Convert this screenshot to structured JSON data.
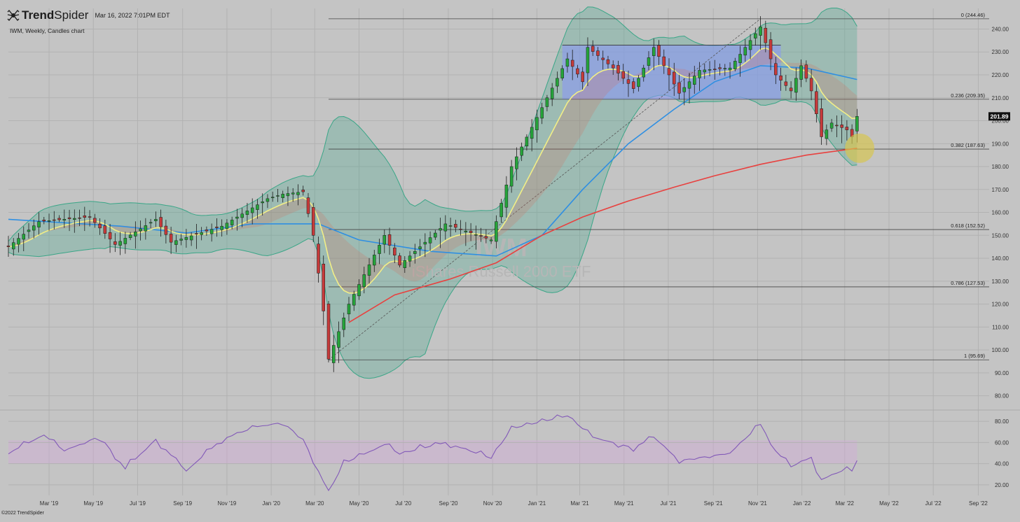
{
  "header": {
    "brand_bold": "Trend",
    "brand_light": "Spider",
    "timestamp": "Mar 16, 2022 7:01PM EDT",
    "subtitle": "IWM, Weekly, Candles chart",
    "copyright": "©2022 TrendSpider"
  },
  "icons": {
    "logo": "trendspider-spider-icon"
  },
  "colors": {
    "background": "#c4c4c4",
    "grid": "#b2b2b2",
    "up_candle": "#25a43a",
    "down_candle": "#c63a3a",
    "ema_fast": "#f1ee87",
    "sma_mid": "#2f8fe2",
    "sma_long": "#e8413f",
    "bollinger": "#3aa687",
    "rsi_line": "#8259b8",
    "consolidation_box": "#8a99f2",
    "highlight": "#d8c64a"
  },
  "watermark": {
    "ticker": "IWM",
    "name": "iShares Russell 2000 ETF"
  },
  "chart_data": {
    "type": "candlestick",
    "interval": "weekly",
    "x_tick_labels": [
      "Mar '19",
      "May '19",
      "Jul '19",
      "Sep '19",
      "Nov '19",
      "Jan '20",
      "Mar '20",
      "May '20",
      "Jul '20",
      "Sep '20",
      "Nov '20",
      "Jan '21",
      "Mar '21",
      "May '21",
      "Jul '21",
      "Sep '21",
      "Nov '21",
      "Jan '22",
      "Mar '22",
      "May '22",
      "Jul '22",
      "Sep '22"
    ],
    "x_tick_dates": [
      "2019-03-01",
      "2019-05-01",
      "2019-07-01",
      "2019-09-01",
      "2019-11-01",
      "2020-01-01",
      "2020-03-01",
      "2020-05-01",
      "2020-07-01",
      "2020-09-01",
      "2020-11-01",
      "2021-01-01",
      "2021-03-01",
      "2021-05-01",
      "2021-07-01",
      "2021-09-01",
      "2021-11-01",
      "2022-01-01",
      "2022-03-01",
      "2022-05-01",
      "2022-07-01",
      "2022-09-01"
    ],
    "x_range": [
      "2019-01-04",
      "2022-09-16"
    ],
    "price_axis": {
      "ylim": [
        75,
        249
      ],
      "ticks": [
        80,
        90,
        100,
        110,
        120,
        130,
        140,
        150,
        160,
        170,
        180,
        190,
        200,
        210,
        220,
        230,
        240
      ],
      "tick_labels": [
        "80.00",
        "90.00",
        "100.00",
        "110.00",
        "120.00",
        "130.00",
        "140.00",
        "150.00",
        "160.00",
        "170.00",
        "180.00",
        "190.00",
        "200.00",
        "210.00",
        "220.00",
        "230.00",
        "240.00"
      ]
    },
    "last_price": 201.89,
    "last_price_label": "201.89",
    "key_points": [
      {
        "date": "2019-01-04",
        "close": 145
      },
      {
        "date": "2019-02-15",
        "close": 156
      },
      {
        "date": "2019-04-26",
        "close": 158
      },
      {
        "date": "2019-05-31",
        "close": 146
      },
      {
        "date": "2019-07-26",
        "close": 157
      },
      {
        "date": "2019-08-16",
        "close": 147
      },
      {
        "date": "2019-10-25",
        "close": 154
      },
      {
        "date": "2019-12-27",
        "close": 166
      },
      {
        "date": "2020-01-17",
        "close": 168
      },
      {
        "date": "2020-02-14",
        "close": 169
      },
      {
        "date": "2020-02-28",
        "close": 150
      },
      {
        "date": "2020-03-13",
        "close": 117
      },
      {
        "date": "2020-03-20",
        "close": 96
      },
      {
        "date": "2020-04-17",
        "close": 120
      },
      {
        "date": "2020-06-05",
        "close": 150
      },
      {
        "date": "2020-06-26",
        "close": 137
      },
      {
        "date": "2020-08-28",
        "close": 155
      },
      {
        "date": "2020-10-30",
        "close": 148
      },
      {
        "date": "2020-11-27",
        "close": 180
      },
      {
        "date": "2021-01-15",
        "close": 210
      },
      {
        "date": "2021-02-12",
        "close": 227
      },
      {
        "date": "2021-03-05",
        "close": 217
      },
      {
        "date": "2021-03-12",
        "close": 232
      },
      {
        "date": "2021-04-16",
        "close": 223
      },
      {
        "date": "2021-05-14",
        "close": 214
      },
      {
        "date": "2021-06-11",
        "close": 232
      },
      {
        "date": "2021-07-16",
        "close": 212
      },
      {
        "date": "2021-08-13",
        "close": 222
      },
      {
        "date": "2021-09-24",
        "close": 223
      },
      {
        "date": "2021-11-05",
        "close": 241
      },
      {
        "date": "2021-11-26",
        "close": 220
      },
      {
        "date": "2021-12-17",
        "close": 213
      },
      {
        "date": "2021-12-31",
        "close": 224
      },
      {
        "date": "2022-01-14",
        "close": 213
      },
      {
        "date": "2022-01-28",
        "close": 193
      },
      {
        "date": "2022-02-11",
        "close": 199
      },
      {
        "date": "2022-03-04",
        "close": 196
      },
      {
        "date": "2022-03-11",
        "close": 193
      },
      {
        "date": "2022-03-18",
        "close": 201.89
      }
    ],
    "fibonacci": [
      {
        "label": "0 (244.46)",
        "price": 244.46
      },
      {
        "label": "0.236 (209.35)",
        "price": 209.35
      },
      {
        "label": "0.382 (187.63)",
        "price": 187.63
      },
      {
        "label": "0.618 (152.52)",
        "price": 152.52
      },
      {
        "label": "0.786 (127.53)",
        "price": 127.53
      },
      {
        "label": "1 (95.69)",
        "price": 95.69
      }
    ],
    "fib_start_date": "2020-03-20",
    "fib_end_date": "2022-09-16",
    "trend_line": {
      "from": {
        "date": "2020-03-20",
        "price": 95.69
      },
      "to": {
        "date": "2021-11-05",
        "price": 244.46
      }
    },
    "consolidation_box": {
      "from_date": "2021-02-05",
      "to_date": "2021-12-03",
      "low": 209.35,
      "high": 233
    },
    "highlight_circle": {
      "date": "2022-03-11",
      "price": 188
    },
    "sma_long_points": [
      {
        "date": "2020-04-17",
        "value": 112
      },
      {
        "date": "2020-06-19",
        "value": 124
      },
      {
        "date": "2020-09-04",
        "value": 131
      },
      {
        "date": "2020-11-06",
        "value": 138
      },
      {
        "date": "2021-01-08",
        "value": 150
      },
      {
        "date": "2021-03-05",
        "value": 158
      },
      {
        "date": "2021-05-07",
        "value": 165
      },
      {
        "date": "2021-07-09",
        "value": 171
      },
      {
        "date": "2021-09-03",
        "value": 176
      },
      {
        "date": "2021-11-05",
        "value": 181
      },
      {
        "date": "2022-01-07",
        "value": 185
      },
      {
        "date": "2022-03-18",
        "value": 188
      }
    ],
    "sma_mid_points": [
      {
        "date": "2019-01-04",
        "value": 157
      },
      {
        "date": "2019-06-07",
        "value": 154
      },
      {
        "date": "2019-09-06",
        "value": 151
      },
      {
        "date": "2019-12-06",
        "value": 155
      },
      {
        "date": "2020-03-06",
        "value": 155
      },
      {
        "date": "2020-05-01",
        "value": 148
      },
      {
        "date": "2020-08-07",
        "value": 143
      },
      {
        "date": "2020-11-06",
        "value": 141
      },
      {
        "date": "2021-01-08",
        "value": 150
      },
      {
        "date": "2021-03-05",
        "value": 170
      },
      {
        "date": "2021-05-07",
        "value": 190
      },
      {
        "date": "2021-07-09",
        "value": 205
      },
      {
        "date": "2021-09-03",
        "value": 217
      },
      {
        "date": "2021-11-05",
        "value": 224
      },
      {
        "date": "2022-01-07",
        "value": 223
      },
      {
        "date": "2022-03-18",
        "value": 218
      }
    ],
    "rsi": {
      "ylim": [
        10,
        88
      ],
      "ticks": [
        20,
        40,
        60,
        80
      ],
      "tick_labels": [
        "20.00",
        "40.00",
        "60.00",
        "80.00"
      ],
      "band": [
        40,
        62
      ],
      "points": [
        {
          "date": "2019-01-04",
          "value": 50
        },
        {
          "date": "2019-02-22",
          "value": 67
        },
        {
          "date": "2019-03-22",
          "value": 52
        },
        {
          "date": "2019-05-10",
          "value": 66
        },
        {
          "date": "2019-06-14",
          "value": 35
        },
        {
          "date": "2019-07-26",
          "value": 63
        },
        {
          "date": "2019-09-06",
          "value": 33
        },
        {
          "date": "2019-10-25",
          "value": 63
        },
        {
          "date": "2019-12-13",
          "value": 75
        },
        {
          "date": "2020-01-17",
          "value": 79
        },
        {
          "date": "2020-02-14",
          "value": 63
        },
        {
          "date": "2020-03-20",
          "value": 13
        },
        {
          "date": "2020-04-10",
          "value": 40
        },
        {
          "date": "2020-06-05",
          "value": 58
        },
        {
          "date": "2020-06-26",
          "value": 49
        },
        {
          "date": "2020-08-28",
          "value": 60
        },
        {
          "date": "2020-10-30",
          "value": 45
        },
        {
          "date": "2020-11-27",
          "value": 73
        },
        {
          "date": "2021-02-12",
          "value": 85
        },
        {
          "date": "2021-03-19",
          "value": 65
        },
        {
          "date": "2021-05-14",
          "value": 55
        },
        {
          "date": "2021-06-11",
          "value": 65
        },
        {
          "date": "2021-07-16",
          "value": 43
        },
        {
          "date": "2021-09-24",
          "value": 50
        },
        {
          "date": "2021-11-05",
          "value": 77
        },
        {
          "date": "2021-11-26",
          "value": 52
        },
        {
          "date": "2021-12-17",
          "value": 37
        },
        {
          "date": "2022-01-14",
          "value": 46
        },
        {
          "date": "2022-01-28",
          "value": 25
        },
        {
          "date": "2022-02-25",
          "value": 33
        },
        {
          "date": "2022-03-11",
          "value": 33
        },
        {
          "date": "2022-03-18",
          "value": 43
        }
      ]
    }
  }
}
